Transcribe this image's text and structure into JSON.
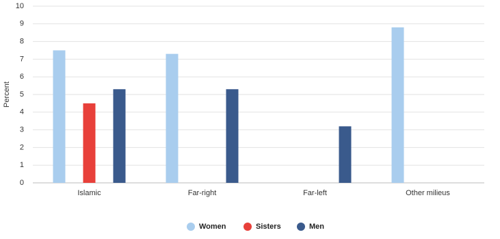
{
  "chart_data": {
    "type": "bar",
    "y_label": "Percent",
    "categories": [
      "Islamic",
      "Far-right",
      "Far-left",
      "Other milieus"
    ],
    "series": [
      {
        "name": "Women",
        "color": "#a9cdee",
        "values": [
          7.5,
          7.3,
          null,
          8.8
        ]
      },
      {
        "name": "Sisters",
        "color": "#e8403a",
        "values": [
          4.5,
          null,
          null,
          null
        ]
      },
      {
        "name": "Men",
        "color": "#3a5a8c",
        "values": [
          5.3,
          5.3,
          3.2,
          null
        ]
      }
    ],
    "ylim": [
      0,
      10
    ],
    "yticks": [
      0,
      1,
      2,
      3,
      4,
      5,
      6,
      7,
      8,
      9,
      10
    ],
    "grid": true,
    "legend": "bottom"
  }
}
